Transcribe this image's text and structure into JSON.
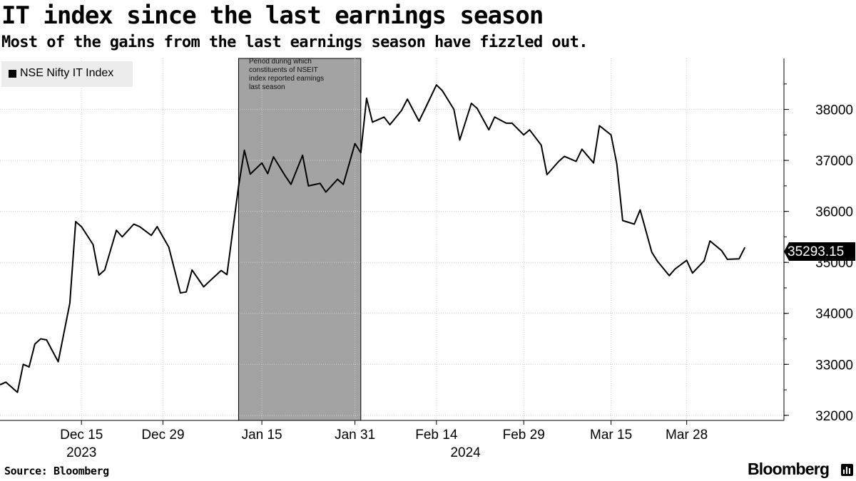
{
  "title": "IT index since the last earnings season",
  "subtitle": "Most of the gains from the last earnings season have fizzled out.",
  "source": "Source: Bloomberg",
  "brand": "Bloomberg",
  "annotation": "Period during which constituents of NSEIT index reported earnings last season",
  "last_value_label": "35293.15",
  "colors": {
    "line": "#000000",
    "shade": "#a3a3a3",
    "grid": "#cfcfcf",
    "legend_bg": "#ececec"
  },
  "chart_data": {
    "type": "line",
    "title": "IT index since the last earnings season",
    "subtitle": "Most of the gains from the last earnings season have fizzled out.",
    "xlabel": "",
    "ylabel": "",
    "legend": {
      "placement": "top-left",
      "entries": [
        "NSE Nifty IT Index"
      ]
    },
    "grid": true,
    "y_axis_side": "right",
    "ylim": [
      31900,
      39000
    ],
    "y_ticks": [
      32000,
      33000,
      34000,
      35000,
      36000,
      37000,
      38000
    ],
    "x_ticks": [
      {
        "date": "2023-12-15",
        "label": "Dec 15"
      },
      {
        "date": "2023-12-29",
        "label": "Dec 29"
      },
      {
        "date": "2024-01-15",
        "label": "Jan 15"
      },
      {
        "date": "2024-01-31",
        "label": "Jan 31"
      },
      {
        "date": "2024-02-14",
        "label": "Feb 14"
      },
      {
        "date": "2024-02-29",
        "label": "Feb 29"
      },
      {
        "date": "2024-03-15",
        "label": "Mar 15"
      },
      {
        "date": "2024-03-28",
        "label": "Mar 28"
      }
    ],
    "year_labels": [
      {
        "date": "2023-12-15",
        "label": "2023"
      },
      {
        "date": "2024-02-19",
        "label": "2024"
      }
    ],
    "xlim": [
      "2023-12-01",
      "2024-04-12"
    ],
    "shaded_period": {
      "start": "2024-01-11",
      "end": "2024-02-01"
    },
    "series": [
      {
        "name": "NSE Nifty IT Index",
        "points": [
          [
            "2023-12-01",
            32600
          ],
          [
            "2023-12-02",
            32650
          ],
          [
            "2023-12-04",
            32450
          ],
          [
            "2023-12-05",
            33000
          ],
          [
            "2023-12-06",
            32950
          ],
          [
            "2023-12-07",
            33400
          ],
          [
            "2023-12-08",
            33500
          ],
          [
            "2023-12-09",
            33480
          ],
          [
            "2023-12-11",
            33050
          ],
          [
            "2023-12-13",
            34200
          ],
          [
            "2023-12-14",
            35800
          ],
          [
            "2023-12-15",
            35700
          ],
          [
            "2023-12-17",
            35350
          ],
          [
            "2023-12-18",
            34750
          ],
          [
            "2023-12-19",
            34850
          ],
          [
            "2023-12-21",
            35630
          ],
          [
            "2023-12-22",
            35500
          ],
          [
            "2023-12-24",
            35750
          ],
          [
            "2023-12-25",
            35700
          ],
          [
            "2023-12-27",
            35530
          ],
          [
            "2023-12-28",
            35700
          ],
          [
            "2023-12-30",
            35300
          ],
          [
            "2024-01-01",
            34400
          ],
          [
            "2024-01-02",
            34420
          ],
          [
            "2024-01-03",
            34850
          ],
          [
            "2024-01-05",
            34520
          ],
          [
            "2024-01-06",
            34630
          ],
          [
            "2024-01-08",
            34840
          ],
          [
            "2024-01-09",
            34760
          ],
          [
            "2024-01-11",
            36500
          ],
          [
            "2024-01-12",
            37200
          ],
          [
            "2024-01-13",
            36730
          ],
          [
            "2024-01-15",
            36950
          ],
          [
            "2024-01-16",
            36740
          ],
          [
            "2024-01-17",
            37070
          ],
          [
            "2024-01-19",
            36700
          ],
          [
            "2024-01-20",
            36530
          ],
          [
            "2024-01-22",
            37100
          ],
          [
            "2024-01-23",
            36500
          ],
          [
            "2024-01-25",
            36550
          ],
          [
            "2024-01-26",
            36380
          ],
          [
            "2024-01-28",
            36630
          ],
          [
            "2024-01-29",
            36530
          ],
          [
            "2024-01-31",
            37330
          ],
          [
            "2024-02-01",
            37150
          ],
          [
            "2024-02-02",
            38220
          ],
          [
            "2024-02-03",
            37750
          ],
          [
            "2024-02-05",
            37850
          ],
          [
            "2024-02-06",
            37700
          ],
          [
            "2024-02-08",
            37980
          ],
          [
            "2024-02-09",
            38200
          ],
          [
            "2024-02-11",
            37770
          ],
          [
            "2024-02-12",
            38000
          ],
          [
            "2024-02-14",
            38480
          ],
          [
            "2024-02-15",
            38370
          ],
          [
            "2024-02-17",
            38000
          ],
          [
            "2024-02-18",
            37400
          ],
          [
            "2024-02-20",
            38120
          ],
          [
            "2024-02-21",
            38020
          ],
          [
            "2024-02-23",
            37600
          ],
          [
            "2024-02-24",
            37850
          ],
          [
            "2024-02-26",
            37730
          ],
          [
            "2024-02-27",
            37730
          ],
          [
            "2024-02-29",
            37500
          ],
          [
            "2024-03-01",
            37600
          ],
          [
            "2024-03-03",
            37300
          ],
          [
            "2024-03-04",
            36720
          ],
          [
            "2024-03-06",
            36980
          ],
          [
            "2024-03-07",
            37080
          ],
          [
            "2024-03-09",
            36980
          ],
          [
            "2024-03-10",
            37220
          ],
          [
            "2024-03-12",
            36950
          ],
          [
            "2024-03-13",
            37680
          ],
          [
            "2024-03-15",
            37500
          ],
          [
            "2024-03-16",
            36930
          ],
          [
            "2024-03-17",
            35820
          ],
          [
            "2024-03-19",
            35750
          ],
          [
            "2024-03-20",
            36030
          ],
          [
            "2024-03-22",
            35200
          ],
          [
            "2024-03-23",
            35020
          ],
          [
            "2024-03-25",
            34740
          ],
          [
            "2024-03-26",
            34870
          ],
          [
            "2024-03-28",
            35040
          ],
          [
            "2024-03-29",
            34790
          ],
          [
            "2024-03-31",
            35030
          ],
          [
            "2024-04-01",
            35420
          ],
          [
            "2024-04-03",
            35230
          ],
          [
            "2024-04-04",
            35060
          ],
          [
            "2024-04-06",
            35070
          ],
          [
            "2024-04-07",
            35293.15
          ]
        ]
      }
    ]
  }
}
